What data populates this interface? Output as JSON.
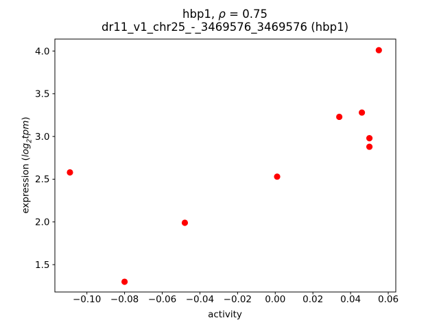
{
  "figure": {
    "title_line1_prefix": "hbp1, ",
    "title_line1_rho": "ρ",
    "title_line1_suffix": " = 0.75",
    "title_line2": "dr11_v1_chr25_-_3469576_3469576 (hbp1)",
    "xlabel": "activity",
    "ylabel_prefix": "expression (",
    "ylabel_log": "log",
    "ylabel_sub": "2",
    "ylabel_tpm": "tpm",
    "ylabel_suffix": ")"
  },
  "chart_data": {
    "type": "scatter",
    "title": "hbp1, ρ = 0.75",
    "subtitle": "dr11_v1_chr25_-_3469576_3469576 (hbp1)",
    "xlabel": "activity",
    "ylabel": "expression (log2 tpm)",
    "xlim": [
      -0.117,
      0.064
    ],
    "ylim": [
      1.18,
      4.14
    ],
    "xticks": [
      -0.1,
      -0.08,
      -0.06,
      -0.04,
      -0.02,
      0.0,
      0.02,
      0.04,
      0.06
    ],
    "yticks": [
      1.5,
      2.0,
      2.5,
      3.0,
      3.5,
      4.0
    ],
    "grid": false,
    "legend": null,
    "marker": "circle",
    "marker_color": "#ff0000",
    "points": [
      {
        "x": -0.109,
        "y": 2.58
      },
      {
        "x": -0.08,
        "y": 1.3
      },
      {
        "x": -0.048,
        "y": 1.99
      },
      {
        "x": 0.001,
        "y": 2.53
      },
      {
        "x": 0.034,
        "y": 3.23
      },
      {
        "x": 0.046,
        "y": 3.28
      },
      {
        "x": 0.05,
        "y": 2.98
      },
      {
        "x": 0.05,
        "y": 2.88
      },
      {
        "x": 0.055,
        "y": 4.01
      }
    ]
  }
}
